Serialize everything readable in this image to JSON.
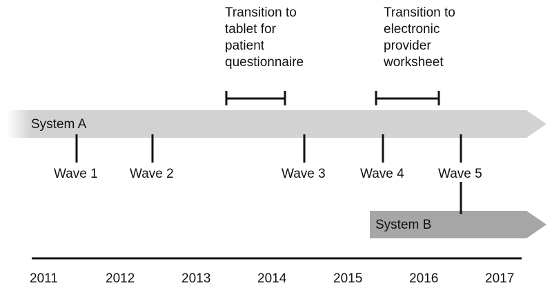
{
  "years": [
    "2011",
    "2012",
    "2013",
    "2014",
    "2015",
    "2016",
    "2017"
  ],
  "systems": {
    "a": {
      "label": "System A",
      "color": "#d2d2d2"
    },
    "b": {
      "label": "System B",
      "color": "#a6a6a6"
    }
  },
  "waves": [
    {
      "label": "Wave 1"
    },
    {
      "label": "Wave 2"
    },
    {
      "label": "Wave 3"
    },
    {
      "label": "Wave 4"
    },
    {
      "label": "Wave 5"
    }
  ],
  "transitions": [
    {
      "label": "Transition to\ntablet for\npatient\nquestionnaire"
    },
    {
      "label": "Transition to\nelectronic\nprovider\nworksheet"
    }
  ]
}
